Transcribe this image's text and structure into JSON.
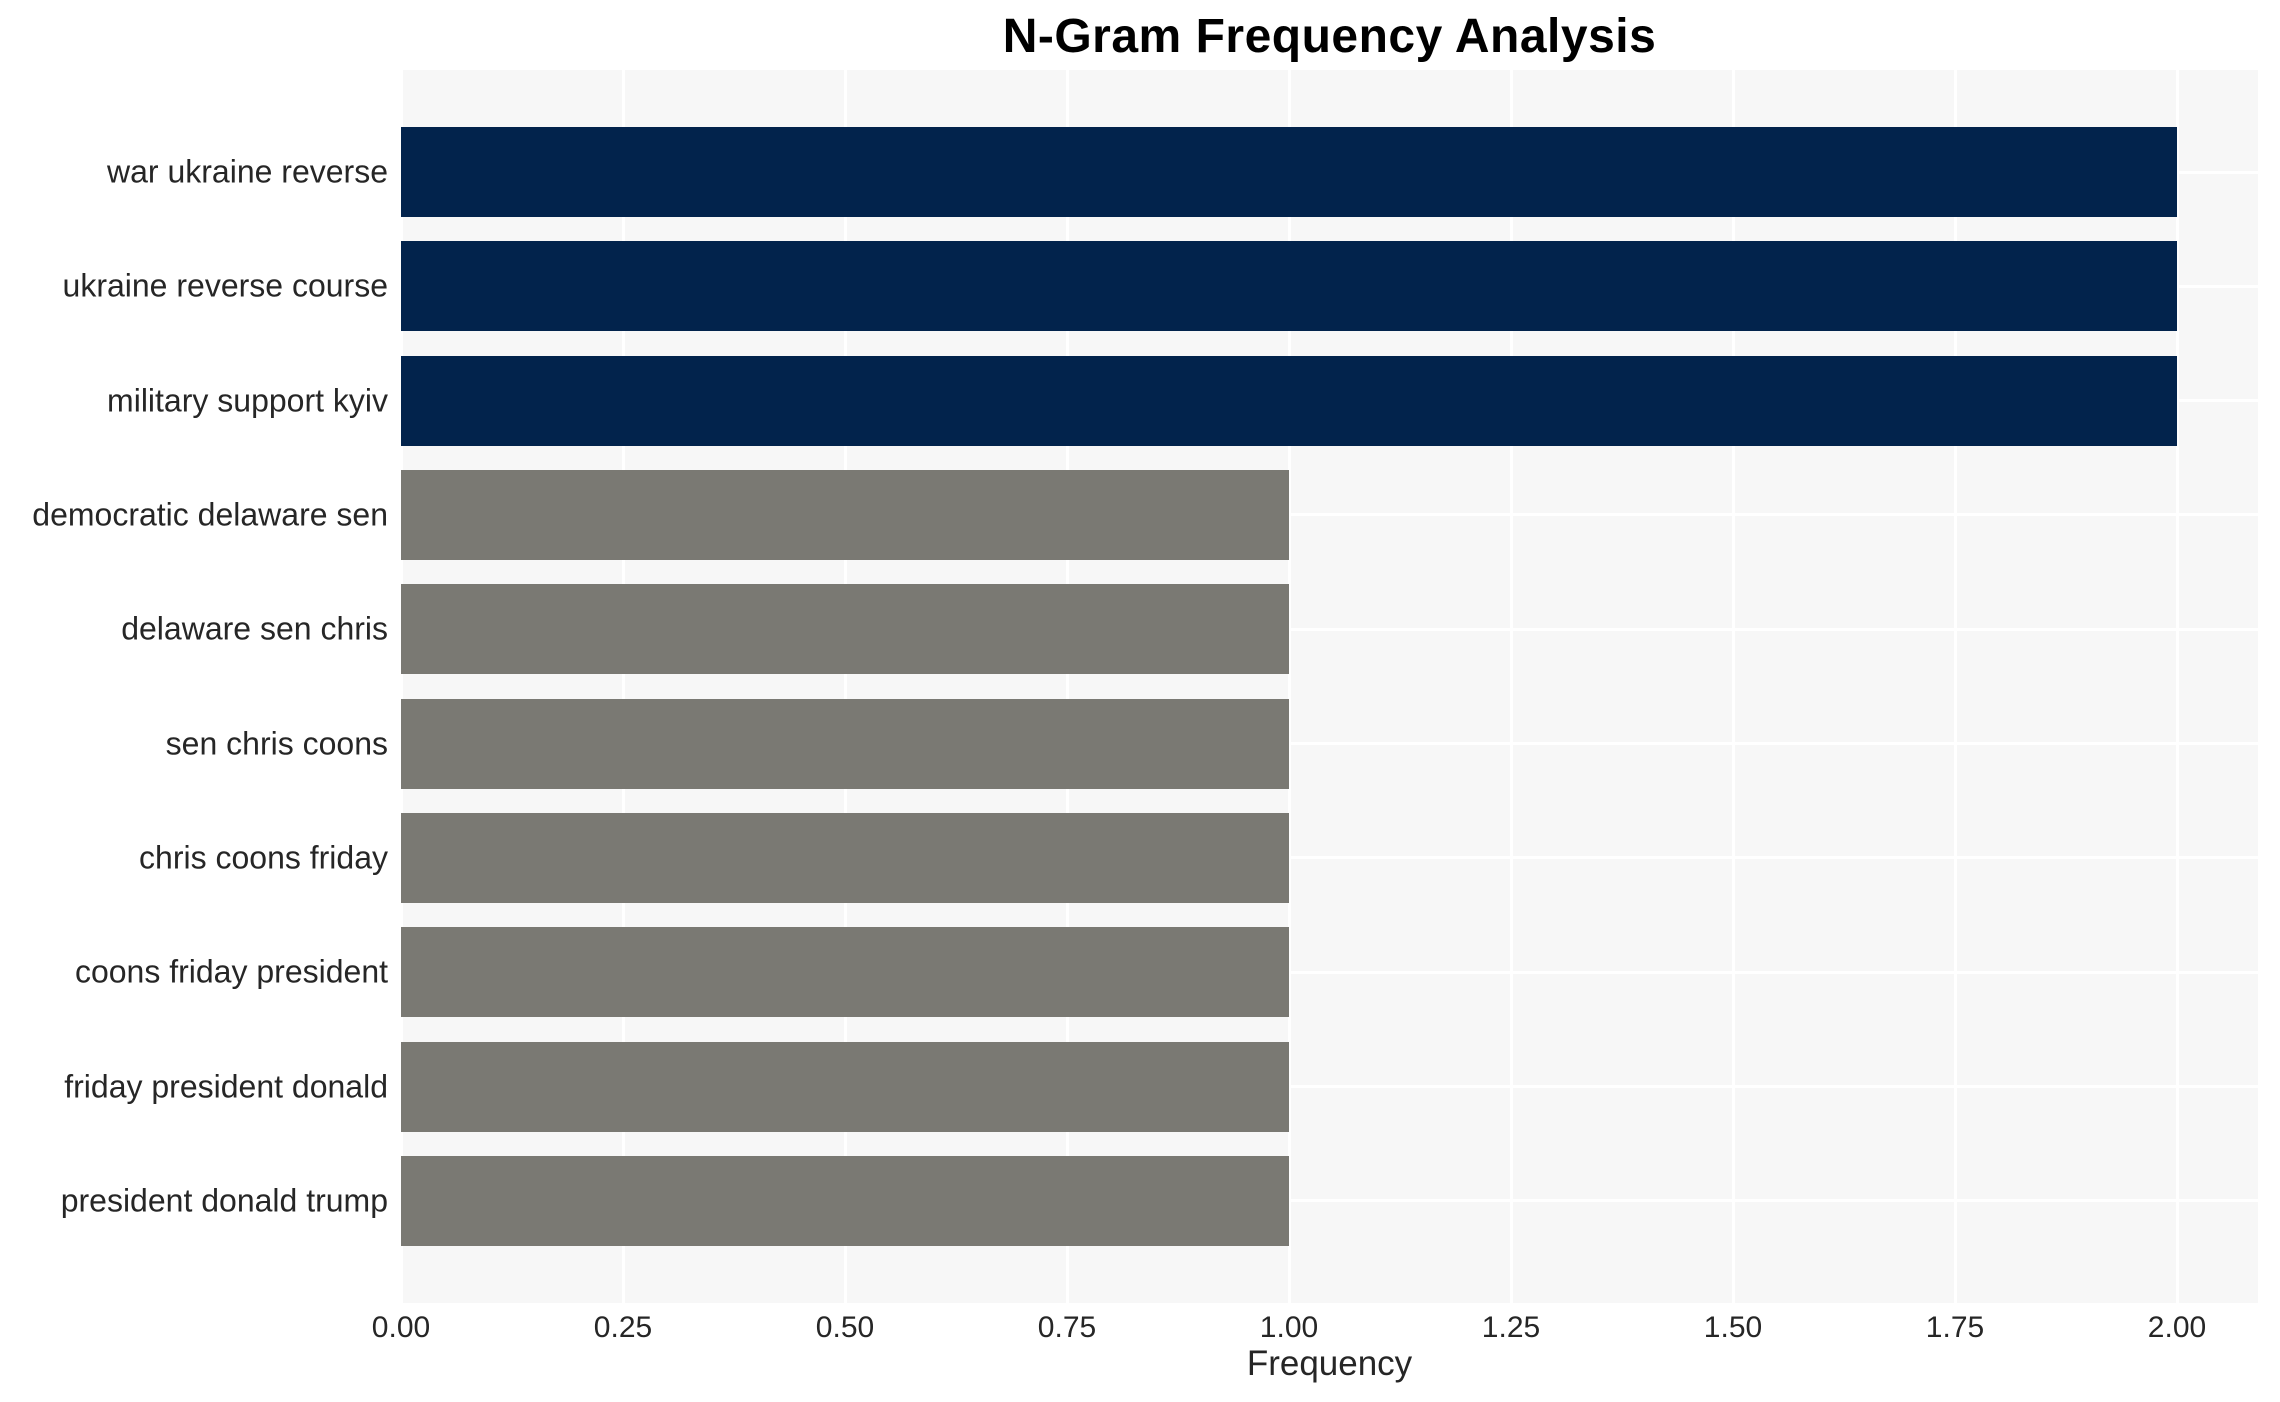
{
  "chart_data": {
    "type": "bar",
    "orientation": "horizontal",
    "title": "N-Gram Frequency Analysis",
    "xlabel": "Frequency",
    "ylabel": "",
    "categories": [
      "war ukraine reverse",
      "ukraine reverse course",
      "military support kyiv",
      "democratic delaware sen",
      "delaware sen chris",
      "sen chris coons",
      "chris coons friday",
      "coons friday president",
      "friday president donald",
      "president donald trump"
    ],
    "values": [
      2,
      2,
      2,
      1,
      1,
      1,
      1,
      1,
      1,
      1
    ],
    "bar_colors": [
      "#02234c",
      "#02234c",
      "#02234c",
      "#7a7973",
      "#7a7973",
      "#7a7973",
      "#7a7973",
      "#7a7973",
      "#7a7973",
      "#7a7973"
    ],
    "xtick_values": [
      0,
      0.25,
      0.5,
      0.75,
      1.0,
      1.25,
      1.5,
      1.75,
      2.0
    ],
    "xtick_labels": [
      "0.00",
      "0.25",
      "0.50",
      "0.75",
      "1.00",
      "1.25",
      "1.50",
      "1.75",
      "2.00"
    ],
    "xlim": [
      0,
      2.09
    ],
    "grid": true,
    "legend": false,
    "colors": {
      "highlight_bar": "#02234c",
      "regular_bar": "#7a7973",
      "plot_background": "#f7f7f7",
      "gridline": "#ffffff",
      "tick_text": "#262626",
      "title_text": "#000000"
    }
  }
}
